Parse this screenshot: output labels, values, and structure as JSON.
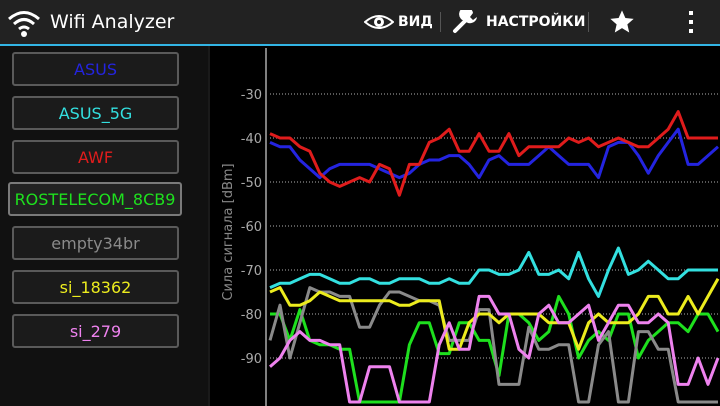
{
  "actionbar": {
    "title": "Wifi Analyzer",
    "view_label": "ВИД",
    "settings_label": "НАСТРОЙКИ"
  },
  "sidebar": {
    "items": [
      {
        "label": "ASUS",
        "color": "#2424e0"
      },
      {
        "label": "ASUS_5G",
        "color": "#33e0e0"
      },
      {
        "label": "AWF",
        "color": "#e01c1c"
      },
      {
        "label": "ROSTELECOM_8CB9",
        "color": "#1ee01e"
      },
      {
        "label": "empty34br",
        "color": "#8a8a8a"
      },
      {
        "label": "si_18362",
        "color": "#ecec1e"
      },
      {
        "label": "si_279",
        "color": "#ee82ee"
      }
    ]
  },
  "chart_data": {
    "type": "line",
    "ylabel": "Сила сигнала [dBm]",
    "ylim": [
      -100,
      -20
    ],
    "y_ticks": [
      -30,
      -40,
      -50,
      -60,
      -70,
      -80,
      -90
    ],
    "grid": true,
    "x": [
      0,
      1,
      2,
      3,
      4,
      5,
      6,
      7,
      8,
      9,
      10,
      11,
      12,
      13,
      14,
      15,
      16,
      17,
      18,
      19,
      20,
      21,
      22,
      23,
      24,
      25,
      26,
      27,
      28,
      29,
      30,
      31,
      32,
      33,
      34,
      35,
      36,
      37,
      38,
      39,
      40,
      41,
      42,
      43,
      44,
      45
    ],
    "series": [
      {
        "name": "ASUS",
        "color": "#2424e0",
        "values": [
          -41,
          -42,
          -42,
          -45,
          -47,
          -49,
          -47,
          -46,
          -46,
          -46,
          -46,
          -47,
          -48,
          -49,
          -48,
          -46,
          -45,
          -45,
          -44,
          -44,
          -46,
          -49,
          -45,
          -44,
          -46,
          -46,
          -46,
          -44,
          -42,
          -44,
          -46,
          -46,
          -46,
          -49,
          -42,
          -41,
          -41,
          -44,
          -48,
          -44,
          -41,
          -38,
          -46,
          -46,
          -44,
          -42
        ]
      },
      {
        "name": "ASUS_5G",
        "color": "#33e0e0",
        "values": [
          -74,
          -73,
          -73,
          -72,
          -71,
          -71,
          -72,
          -73,
          -73,
          -72,
          -72,
          -73,
          -73,
          -72,
          -72,
          -72,
          -73,
          -73,
          -72,
          -73,
          -73,
          -70,
          -70,
          -71,
          -71,
          -70,
          -66,
          -71,
          -71,
          -70,
          -72,
          -66,
          -72,
          -76,
          -70,
          -65,
          -71,
          -70,
          -68,
          -70,
          -72,
          -72,
          -70,
          -70,
          -70,
          -70
        ]
      },
      {
        "name": "AWF",
        "color": "#e01c1c",
        "values": [
          -39,
          -40,
          -40,
          -42,
          -43,
          -48,
          -50,
          -51,
          -50,
          -49,
          -50,
          -46,
          -47,
          -53,
          -46,
          -46,
          -41,
          -40,
          -38,
          -43,
          -43,
          -39,
          -43,
          -43,
          -39,
          -44,
          -42,
          -42,
          -42,
          -42,
          -40,
          -41,
          -40,
          -42,
          -41,
          -40,
          -41,
          -42,
          -42,
          -40,
          -38,
          -34,
          -40,
          -40,
          -40,
          -40
        ]
      },
      {
        "name": "ROSTELECOM_8CB9",
        "color": "#1ee01e",
        "values": [
          -80,
          -80,
          -86,
          -79,
          -86,
          -87,
          -87,
          -88,
          -88,
          -100,
          -100,
          -100,
          -100,
          -100,
          -87,
          -82,
          -82,
          -89,
          -89,
          -82,
          -82,
          -86,
          -86,
          -94,
          -80,
          -80,
          -82,
          -86,
          -84,
          -76,
          -80,
          -90,
          -86,
          -84,
          -86,
          -80,
          -80,
          -90,
          -86,
          -84,
          -82,
          -82,
          -84,
          -80,
          -80,
          -84
        ]
      },
      {
        "name": "empty34br",
        "color": "#8a8a8a",
        "values": [
          -86,
          -78,
          -90,
          -82,
          -74,
          -75,
          -75,
          -76,
          -76,
          -83,
          -83,
          -78,
          -75,
          -75,
          -76,
          -77,
          -77,
          -78,
          -86,
          -86,
          -86,
          -79,
          -79,
          -96,
          -96,
          -96,
          -83,
          -88,
          -88,
          -87,
          -87,
          -100,
          -100,
          -87,
          -84,
          -100,
          -100,
          -84,
          -84,
          -88,
          -88,
          -100,
          -100,
          -100,
          -100,
          -100
        ]
      },
      {
        "name": "si_18362",
        "color": "#ecec1e",
        "values": [
          -75,
          -74,
          -78,
          -78,
          -77,
          -75,
          -76,
          -77,
          -77,
          -77,
          -77,
          -77,
          -77,
          -78,
          -78,
          -77,
          -77,
          -77,
          -88,
          -88,
          -82,
          -80,
          -80,
          -82,
          -80,
          -80,
          -80,
          -80,
          -82,
          -82,
          -82,
          -88,
          -82,
          -80,
          -82,
          -82,
          -82,
          -80,
          -76,
          -76,
          -80,
          -80,
          -76,
          -80,
          -76,
          -72
        ]
      },
      {
        "name": "si_279",
        "color": "#ee82ee",
        "values": [
          -92,
          -90,
          -86,
          -84,
          -86,
          -86,
          -87,
          -87,
          -100,
          -100,
          -92,
          -92,
          -92,
          -100,
          -100,
          -100,
          -100,
          -87,
          -82,
          -88,
          -88,
          -76,
          -76,
          -80,
          -80,
          -88,
          -90,
          -80,
          -78,
          -82,
          -82,
          -80,
          -78,
          -86,
          -82,
          -78,
          -78,
          -82,
          -82,
          -80,
          -82,
          -96,
          -96,
          -90,
          -96,
          -90
        ]
      }
    ]
  }
}
